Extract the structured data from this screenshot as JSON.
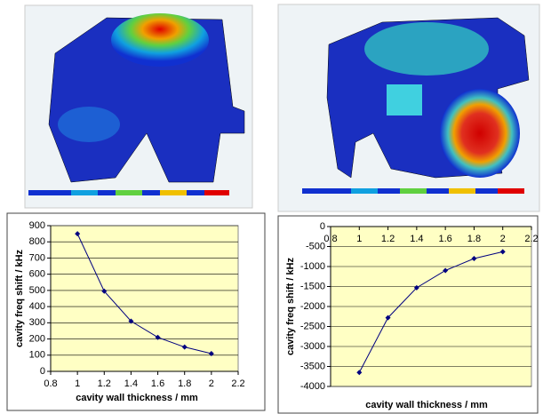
{
  "chart_data": [
    {
      "type": "line",
      "x": [
        1,
        1.2,
        1.4,
        1.6,
        1.8,
        2
      ],
      "values": [
        850,
        495,
        310,
        210,
        150,
        110
      ],
      "color": "#000080",
      "xlabel": "cavity wall thickness / mm",
      "ylabel": "cavity freq shift / kHz",
      "xlim": [
        0.8,
        2.2
      ],
      "xticks": [
        0.8,
        1,
        1.2,
        1.4,
        1.6,
        1.8,
        2,
        2.2
      ],
      "ylim": [
        0,
        900
      ],
      "yticks": [
        0,
        100,
        200,
        300,
        400,
        500,
        600,
        700,
        800,
        900
      ],
      "grid": true
    },
    {
      "type": "line",
      "x": [
        1,
        1.2,
        1.4,
        1.6,
        1.8,
        2
      ],
      "values": [
        -3650,
        -2280,
        -1530,
        -1100,
        -800,
        -630
      ],
      "color": "#000080",
      "xlabel": "cavity wall thickness / mm",
      "ylabel": "cavity freq shift / kHz",
      "xlim": [
        0.8,
        2.2
      ],
      "xticks": [
        0.8,
        1,
        1.2,
        1.4,
        1.6,
        1.8,
        2,
        2.2
      ],
      "ylim": [
        -4000,
        0
      ],
      "yticks": [
        -4000,
        -3500,
        -3000,
        -2500,
        -2000,
        -1500,
        -1000,
        -500,
        0
      ],
      "grid": true
    }
  ]
}
